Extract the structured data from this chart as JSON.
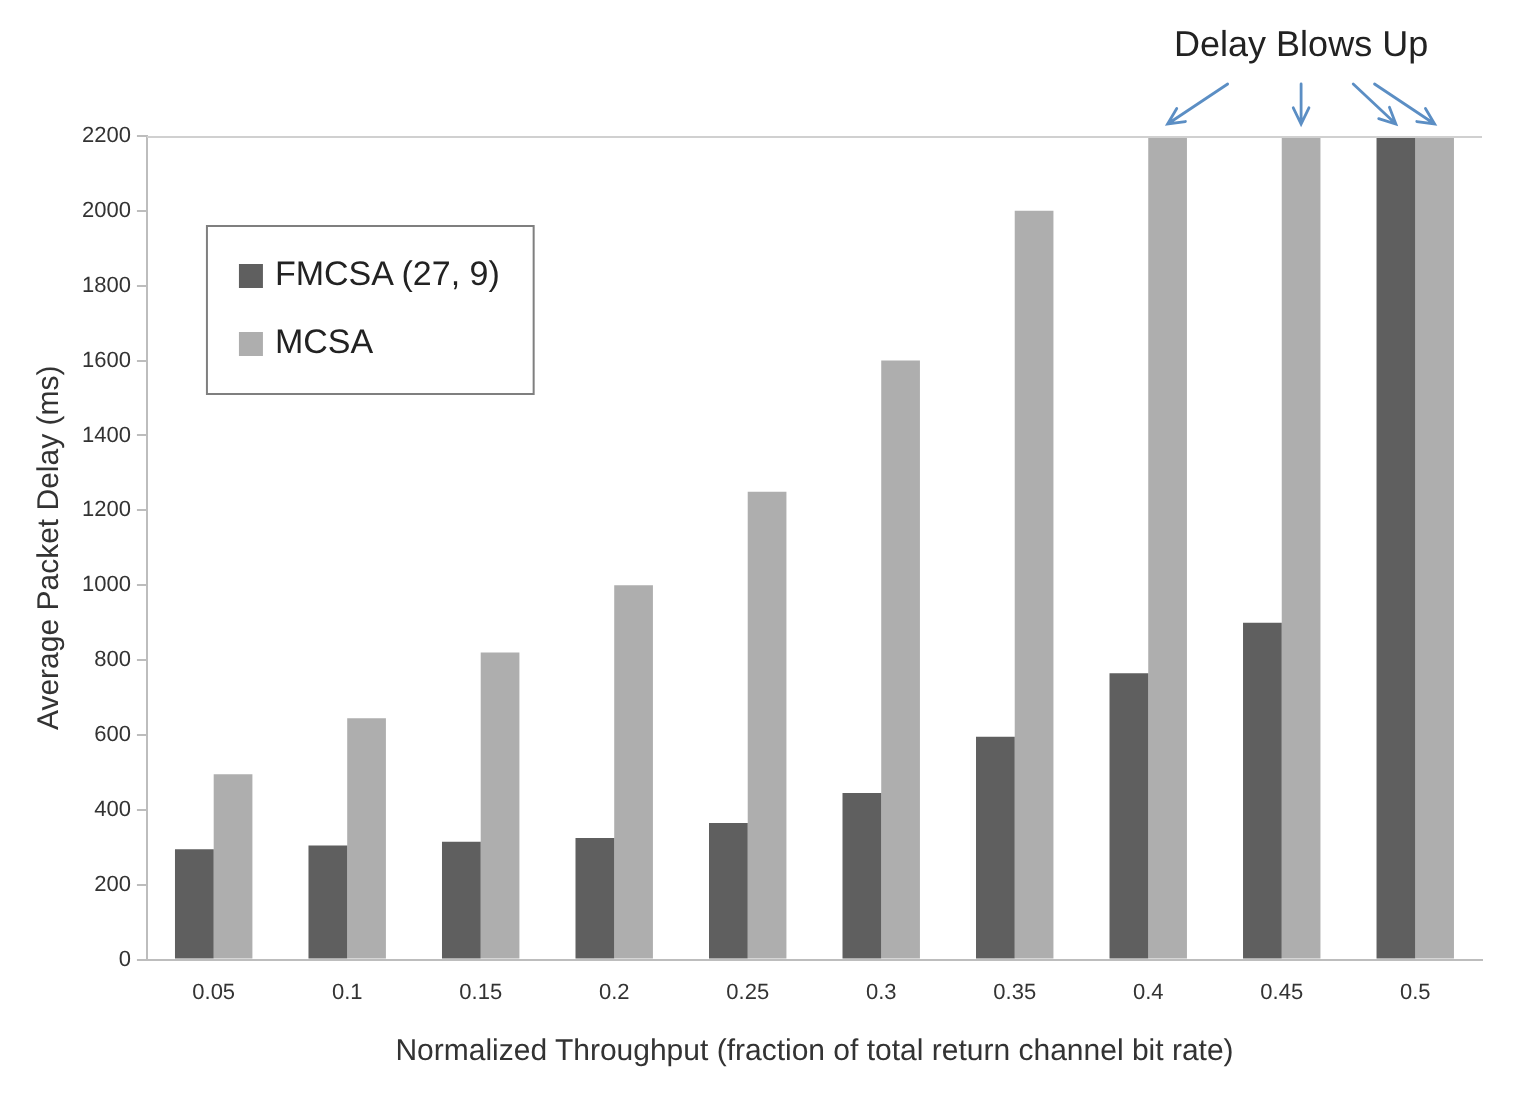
{
  "chart_data": {
    "type": "bar",
    "xlabel": "Normalized Throughput (fraction of total return channel bit rate)",
    "ylabel": "Average Packet Delay (ms)",
    "categories": [
      "0.05",
      "0.1",
      "0.15",
      "0.2",
      "0.25",
      "0.3",
      "0.35",
      "0.4",
      "0.45",
      "0.5"
    ],
    "series": [
      {
        "name": "FMCSA (27, 9)",
        "color": "#5f5f5f",
        "values": [
          295,
          305,
          315,
          325,
          365,
          445,
          595,
          765,
          900,
          2200
        ]
      },
      {
        "name": "MCSA",
        "color": "#aeaeae",
        "values": [
          495,
          645,
          820,
          1000,
          1250,
          1600,
          2000,
          2200,
          2200,
          2200
        ]
      }
    ],
    "ylim": [
      0,
      2200
    ],
    "yticks": [
      0,
      200,
      400,
      600,
      800,
      1000,
      1200,
      1400,
      1600,
      1800,
      2000,
      2200
    ],
    "grid": false,
    "legend": "top left",
    "annotations": [
      "Delay Blows Up"
    ]
  }
}
